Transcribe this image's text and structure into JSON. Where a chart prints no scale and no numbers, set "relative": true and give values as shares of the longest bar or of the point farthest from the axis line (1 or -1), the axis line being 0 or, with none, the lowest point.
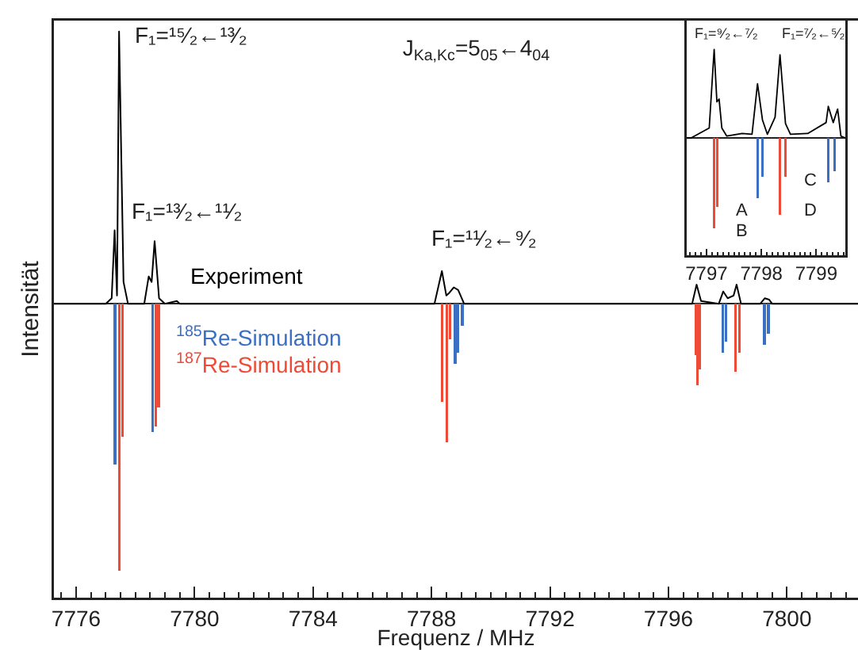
{
  "chart_data": [
    {
      "type": "line",
      "title": "J$_{Ka,Kc}$=5$_{05}$←4$_{04}$",
      "xlabel": "Frequenz / MHz",
      "ylabel": "Intensität",
      "relative": true,
      "xlim": [
        7775.25,
        7802.4
      ],
      "xticks": [
        7776,
        7780,
        7784,
        7788,
        7792,
        7796,
        7800
      ],
      "series": [
        {
          "name": "Experiment",
          "color": "#000000",
          "x": [
            7775.25,
            7777.0,
            7777.2,
            7777.3,
            7777.38,
            7777.45,
            7777.6,
            7777.75,
            7778.3,
            7778.45,
            7778.55,
            7778.65,
            7778.8,
            7779.0,
            7779.4,
            7779.5,
            7788.1,
            7788.35,
            7788.5,
            7788.6,
            7788.75,
            7788.9,
            7789.1,
            7796.8,
            7796.95,
            7797.1,
            7797.7,
            7797.85,
            7798.0,
            7798.2,
            7798.3,
            7798.45,
            7799.1,
            7799.25,
            7799.4,
            7799.5,
            7802.4
          ],
          "values": [
            0,
            0,
            0.02,
            0.27,
            0.03,
            1.0,
            0.08,
            0,
            0,
            0.1,
            0.08,
            0.23,
            0.02,
            0,
            0.01,
            0,
            0,
            0.12,
            0.03,
            0.04,
            0.06,
            0.05,
            0,
            0,
            0.07,
            0.01,
            0,
            0.045,
            0.02,
            0.03,
            0.07,
            0,
            0,
            0.02,
            0.015,
            0,
            0
          ]
        },
        {
          "name": "$^{185}$Re-Simulation",
          "type": "bar",
          "color": "#3a6fc4",
          "x": [
            7777.31,
            7778.58,
            7788.8,
            7788.89,
            7789.04,
            7797.84,
            7797.95,
            7799.24,
            7799.37
          ],
          "values": [
            -0.59,
            -0.47,
            -0.22,
            -0.18,
            -0.08,
            -0.18,
            -0.14,
            -0.15,
            -0.11
          ]
        },
        {
          "name": "$^{187}$Re-Simulation",
          "type": "bar",
          "color": "#ee4a35",
          "x": [
            7777.45,
            7777.57,
            7778.69,
            7778.78,
            7788.36,
            7788.51,
            7788.62,
            7796.92,
            7796.97,
            7797.05,
            7798.27,
            7798.39
          ],
          "values": [
            -0.98,
            -0.49,
            -0.45,
            -0.38,
            -0.36,
            -0.51,
            -0.13,
            -0.19,
            -0.3,
            -0.24,
            -0.25,
            -0.18
          ]
        }
      ],
      "annotations": [
        "F₁=¹⁵⁄₂←¹³⁄₂",
        "F₁=¹³⁄₂←¹¹⁄₂",
        "F₁=¹¹⁄₂←⁹⁄₂"
      ]
    },
    {
      "type": "line",
      "relative": true,
      "xlim": [
        7796.64,
        7799.53
      ],
      "xticks": [
        7797,
        7798,
        7799
      ],
      "series": [
        {
          "color": "#000000",
          "x": [
            7796.64,
            7796.72,
            7797.05,
            7797.14,
            7797.19,
            7797.23,
            7797.28,
            7797.37,
            7797.65,
            7797.83,
            7797.93,
            7798.02,
            7798.11,
            7798.25,
            7798.34,
            7798.44,
            7798.53,
            7798.85,
            7799.18,
            7799.22,
            7799.31,
            7799.39,
            7799.45,
            7799.53
          ],
          "values": [
            0,
            0,
            0.11,
            0.98,
            0.4,
            0.43,
            0.11,
            0.02,
            0.05,
            0.04,
            0.6,
            0.2,
            0.04,
            0.23,
            0.92,
            0.16,
            0.04,
            0.05,
            0.17,
            0.35,
            0.17,
            0.32,
            0.02,
            0
          ]
        },
        {
          "type": "bar",
          "color": "#3a6fc4",
          "x": [
            7797.93,
            7798.02,
            7799.22,
            7799.33
          ],
          "values": [
            -0.67,
            -0.43,
            -0.49,
            -0.37
          ]
        },
        {
          "type": "bar",
          "color": "#ee4a35",
          "x": [
            7797.14,
            7797.19,
            7798.34,
            7798.44
          ],
          "values": [
            -1.0,
            -0.76,
            -0.85,
            -0.43
          ]
        }
      ],
      "annotations": [
        "F₁=⁹⁄₂←⁷⁄₂",
        "F₁=⁷⁄₂←⁵⁄₂",
        "A",
        "B",
        "C",
        "D"
      ]
    }
  ]
}
